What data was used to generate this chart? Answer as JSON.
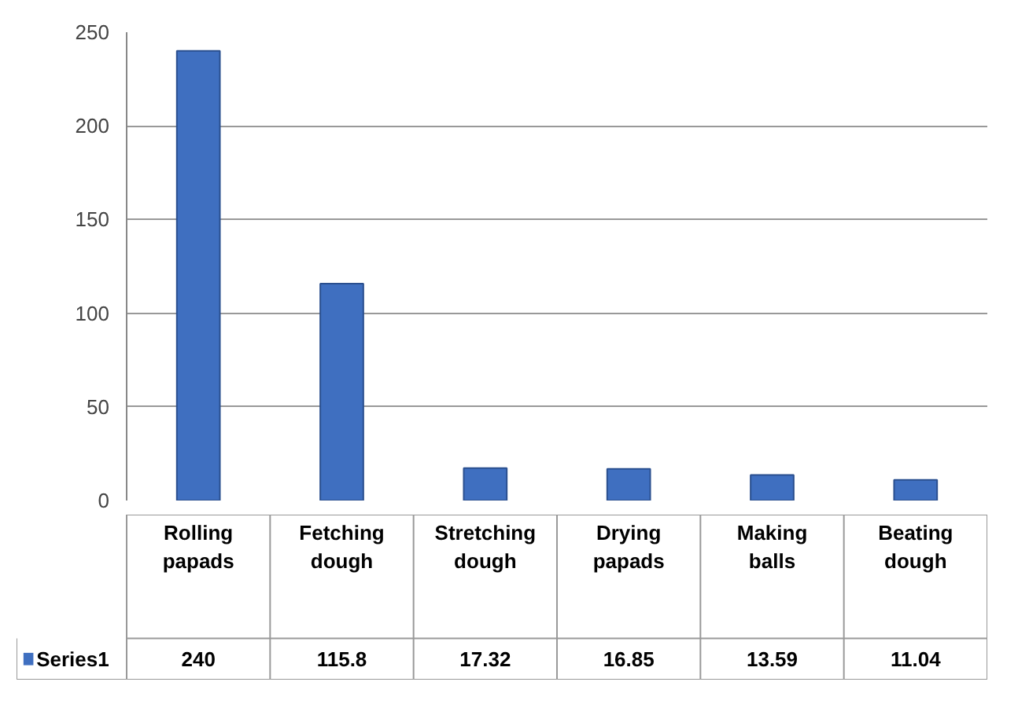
{
  "chart_data": {
    "type": "bar",
    "categories": [
      "Rolling papads",
      "Fetching dough",
      "Stretching dough",
      "Drying papads",
      "Making balls",
      "Beating dough"
    ],
    "series": [
      {
        "name": "Series1",
        "color": "#3f6fc0",
        "values": [
          240,
          115.8,
          17.32,
          16.85,
          13.59,
          11.04
        ]
      }
    ],
    "ylim": [
      0,
      250
    ],
    "yticks": [
      0,
      50,
      100,
      150,
      200,
      250
    ],
    "grid": "y",
    "legend": "bottom",
    "data_labels": true
  }
}
